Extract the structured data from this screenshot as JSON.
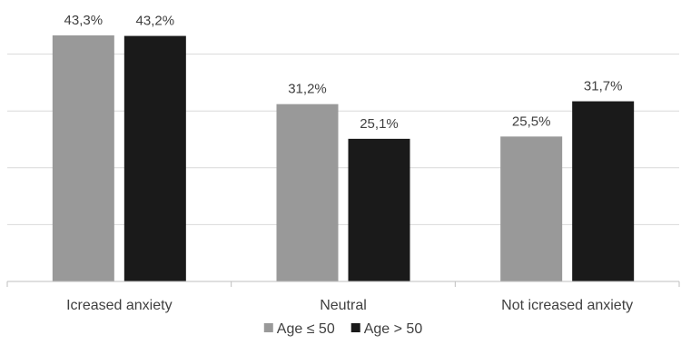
{
  "chart_data": {
    "type": "bar",
    "categories": [
      "Icreased anxiety",
      "Neutral",
      "Not icreased anxiety"
    ],
    "series": [
      {
        "name": "Age ≤ 50",
        "values": [
          43.3,
          31.2,
          25.5
        ],
        "labels": [
          "43,3%",
          "31,2%",
          "25,5%"
        ],
        "color": "#999999"
      },
      {
        "name": "Age > 50",
        "values": [
          43.2,
          25.1,
          31.7
        ],
        "labels": [
          "43,2%",
          "25,1%",
          "31,7%"
        ],
        "color": "#1a1a1a"
      }
    ],
    "ylim": [
      0,
      50
    ],
    "grid": true,
    "legend": "bottom"
  }
}
